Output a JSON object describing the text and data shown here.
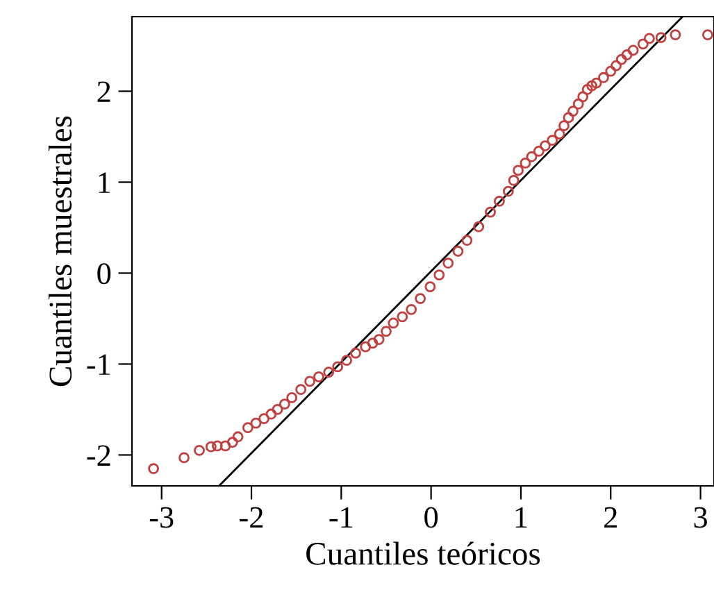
{
  "chart_data": {
    "type": "scatter",
    "xlabel": "Cuantiles teóricos",
    "ylabel": "Cuantiles muestrales",
    "xlim": [
      -3.33,
      3.15
    ],
    "ylim": [
      -2.34,
      2.82
    ],
    "xticks": [
      -3,
      -2,
      -1,
      0,
      1,
      2,
      3
    ],
    "yticks": [
      -2,
      -1,
      0,
      1,
      2
    ],
    "grid": false,
    "marker": "circle",
    "series": [
      {
        "color": "#c04040",
        "x": [
          -3.09,
          -2.75,
          -2.58,
          -2.45,
          -2.38,
          -2.29,
          -2.21,
          -2.15,
          -2.04,
          -1.95,
          -1.86,
          -1.78,
          -1.71,
          -1.63,
          -1.55,
          -1.45,
          -1.35,
          -1.25,
          -1.14,
          -1.04,
          -0.94,
          -0.84,
          -0.73,
          -0.65,
          -0.58,
          -0.5,
          -0.42,
          -0.32,
          -0.22,
          -0.12,
          -0.01,
          0.09,
          0.19,
          0.3,
          0.4,
          0.53,
          0.66,
          0.76,
          0.86,
          0.92,
          0.97,
          1.05,
          1.12,
          1.2,
          1.27,
          1.35,
          1.43,
          1.48,
          1.53,
          1.58,
          1.64,
          1.69,
          1.74,
          1.79,
          1.84,
          1.92,
          2.0,
          2.06,
          2.12,
          2.18,
          2.25,
          2.36,
          2.43,
          2.56,
          2.72,
          3.08
        ],
        "values": [
          -2.15,
          -2.03,
          -1.95,
          -1.91,
          -1.9,
          -1.9,
          -1.86,
          -1.8,
          -1.7,
          -1.65,
          -1.6,
          -1.55,
          -1.5,
          -1.44,
          -1.37,
          -1.28,
          -1.19,
          -1.14,
          -1.09,
          -1.03,
          -0.96,
          -0.88,
          -0.81,
          -0.77,
          -0.73,
          -0.64,
          -0.55,
          -0.48,
          -0.4,
          -0.28,
          -0.15,
          -0.02,
          0.11,
          0.24,
          0.36,
          0.51,
          0.67,
          0.79,
          0.9,
          1.02,
          1.13,
          1.21,
          1.28,
          1.34,
          1.4,
          1.46,
          1.53,
          1.62,
          1.71,
          1.78,
          1.86,
          1.94,
          2.02,
          2.06,
          2.09,
          2.15,
          2.22,
          2.28,
          2.35,
          2.4,
          2.45,
          2.52,
          2.58,
          2.59,
          2.62,
          2.62
        ]
      },
      {
        "type": "line",
        "marker": "none",
        "color": "#000000",
        "x": [
          -2.36,
          2.8
        ],
        "values": [
          -2.34,
          2.82
        ]
      }
    ]
  }
}
